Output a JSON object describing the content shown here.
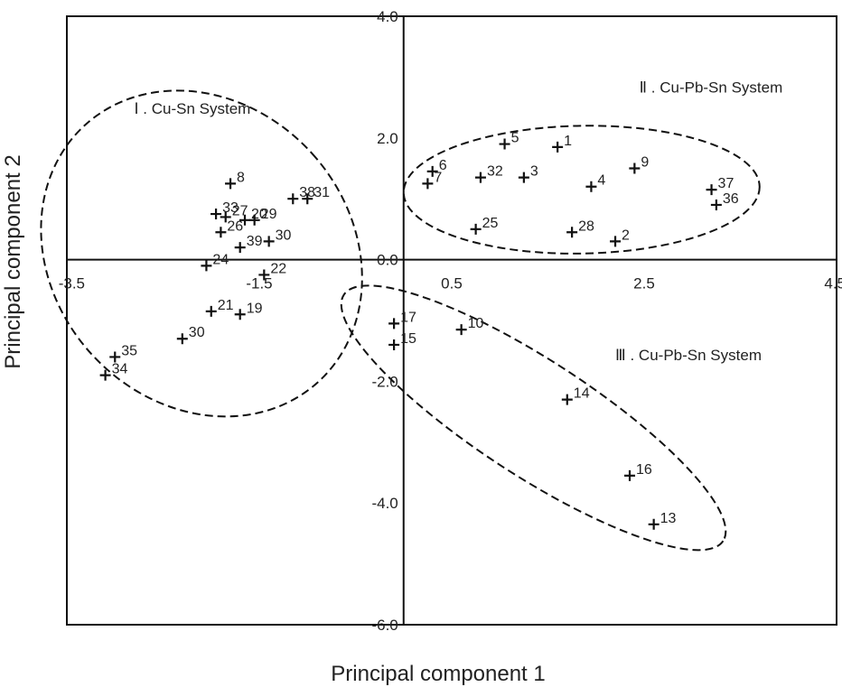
{
  "chart_data": {
    "type": "scatter",
    "xlabel": "Principal component 1",
    "ylabel": "Principal component 2",
    "xlim": [
      -3.5,
      4.5
    ],
    "ylim": [
      -6.0,
      4.0
    ],
    "x_ticks": [
      {
        "value": -3.5,
        "label": "-3.5"
      },
      {
        "value": -1.5,
        "label": "-1.5"
      },
      {
        "value": 0.5,
        "label": "0.5"
      },
      {
        "value": 2.5,
        "label": "2.5"
      },
      {
        "value": 4.5,
        "label": "4.5"
      }
    ],
    "y_ticks": [
      {
        "value": 4.0,
        "label": "4.0"
      },
      {
        "value": 2.0,
        "label": "2.0"
      },
      {
        "value": 0.0,
        "label": "0.0"
      },
      {
        "value": -2.0,
        "label": "-2.0"
      },
      {
        "value": -4.0,
        "label": "-4.0"
      },
      {
        "value": -6.0,
        "label": "-6.0"
      }
    ],
    "grid": false,
    "groups": [
      {
        "label": "Ⅰ . Cu-Sn System",
        "center": [
          -2.1,
          0.1
        ],
        "rx": 1.55,
        "ry": 2.85,
        "angle_deg": 42
      },
      {
        "label": "Ⅱ . Cu-Pb-Sn System",
        "center": [
          1.85,
          1.15
        ],
        "rx": 1.85,
        "ry": 1.05,
        "angle_deg": 1
      },
      {
        "label": "Ⅲ . Cu-Pb-Sn System",
        "center": [
          1.35,
          -2.6
        ],
        "rx": 2.35,
        "ry": 0.95,
        "angle_deg": -33
      }
    ],
    "points": [
      {
        "label": "1",
        "x": 1.6,
        "y": 1.85
      },
      {
        "label": "2",
        "x": 2.2,
        "y": 0.3
      },
      {
        "label": "3",
        "x": 1.25,
        "y": 1.35
      },
      {
        "label": "4",
        "x": 1.95,
        "y": 1.2
      },
      {
        "label": "5",
        "x": 1.05,
        "y": 1.9
      },
      {
        "label": "6",
        "x": 0.3,
        "y": 1.45
      },
      {
        "label": "7",
        "x": 0.25,
        "y": 1.25
      },
      {
        "label": "8",
        "x": -1.8,
        "y": 1.25
      },
      {
        "label": "9",
        "x": 2.4,
        "y": 1.5
      },
      {
        "label": "10",
        "x": 0.6,
        "y": -1.15
      },
      {
        "label": "13",
        "x": 2.6,
        "y": -4.35
      },
      {
        "label": "14",
        "x": 1.7,
        "y": -2.3
      },
      {
        "label": "15",
        "x": -0.1,
        "y": -1.4
      },
      {
        "label": "16",
        "x": 2.35,
        "y": -3.55
      },
      {
        "label": "17",
        "x": -0.1,
        "y": -1.05
      },
      {
        "label": "19",
        "x": -1.7,
        "y": -0.9
      },
      {
        "label": "20",
        "x": -1.65,
        "y": 0.65
      },
      {
        "label": "21",
        "x": -2.0,
        "y": -0.85
      },
      {
        "label": "22",
        "x": -1.45,
        "y": -0.25
      },
      {
        "label": "24",
        "x": -2.05,
        "y": -0.1
      },
      {
        "label": "25",
        "x": 0.75,
        "y": 0.5
      },
      {
        "label": "26",
        "x": -1.9,
        "y": 0.45
      },
      {
        "label": "27",
        "x": -1.85,
        "y": 0.7
      },
      {
        "label": "28",
        "x": 1.75,
        "y": 0.45
      },
      {
        "label": "29",
        "x": -1.55,
        "y": 0.65
      },
      {
        "label": "30",
        "x": -1.4,
        "y": 0.3
      },
      {
        "label": "30",
        "x": -2.3,
        "y": -1.3
      },
      {
        "label": "31",
        "x": -1.0,
        "y": 1.0
      },
      {
        "label": "32",
        "x": 0.8,
        "y": 1.35
      },
      {
        "label": "33",
        "x": -1.95,
        "y": 0.75
      },
      {
        "label": "34",
        "x": -3.1,
        "y": -1.9
      },
      {
        "label": "35",
        "x": -3.0,
        "y": -1.6
      },
      {
        "label": "36",
        "x": 3.25,
        "y": 0.9
      },
      {
        "label": "37",
        "x": 3.2,
        "y": 1.15
      },
      {
        "label": "38",
        "x": -1.15,
        "y": 1.0
      },
      {
        "label": "39",
        "x": -1.7,
        "y": 0.2
      }
    ]
  }
}
